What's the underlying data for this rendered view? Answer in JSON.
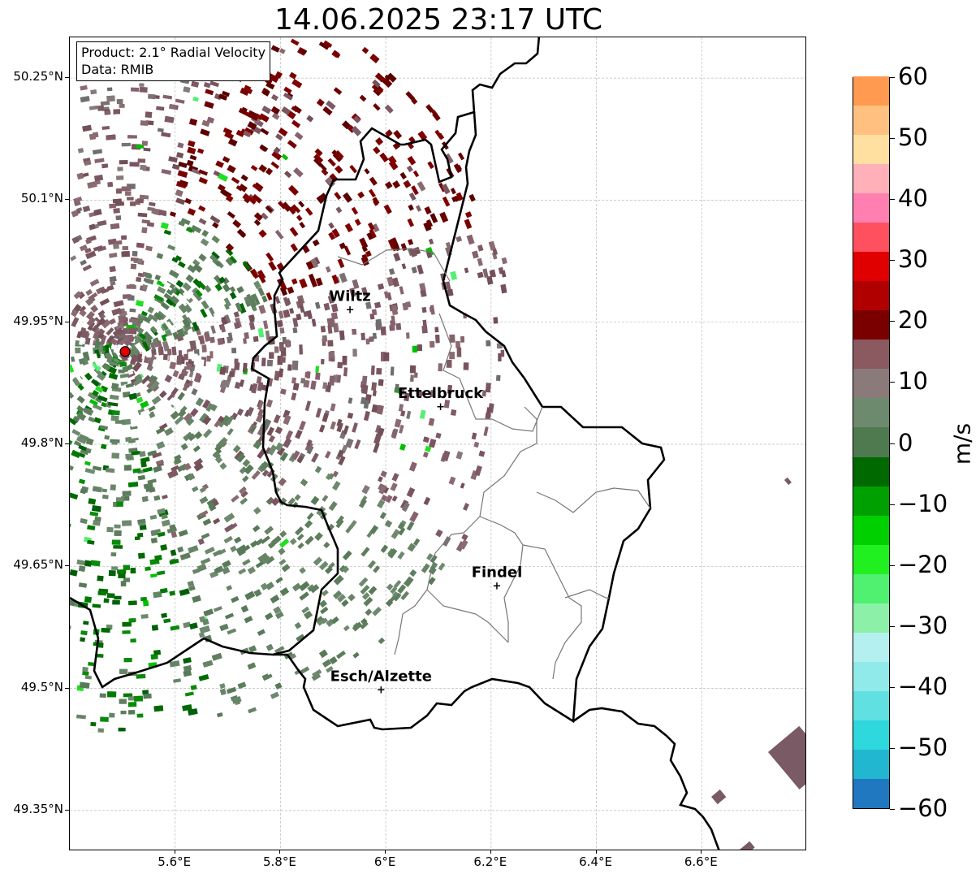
{
  "title": "14.06.2025 23:17 UTC",
  "info": {
    "product": "Product: 2.1° Radial Velocity",
    "data": "Data: RMIB"
  },
  "map": {
    "lon_range": [
      5.4,
      6.8
    ],
    "lat_range": [
      49.3,
      50.3
    ],
    "lat_ticks": [
      "50.25°N",
      "50.1°N",
      "49.95°N",
      "49.8°N",
      "49.65°N",
      "49.5°N",
      "49.35°N"
    ],
    "lon_ticks": [
      "5.6°E",
      "5.8°E",
      "6°E",
      "6.2°E",
      "6.4°E",
      "6.6°E"
    ],
    "grid": true,
    "radar_site": {
      "lon": 5.505,
      "lat": 49.914
    },
    "cities": [
      {
        "name": "Wiltz",
        "lon": 5.932,
        "lat": 49.966
      },
      {
        "name": "Ettelbruck",
        "lon": 6.104,
        "lat": 49.847
      },
      {
        "name": "Findel",
        "lon": 6.211,
        "lat": 49.627
      },
      {
        "name": "Esch/Alzette",
        "lon": 5.991,
        "lat": 49.499
      }
    ]
  },
  "colorbar": {
    "label": "m/s",
    "ticks": [
      "60",
      "50",
      "40",
      "30",
      "20",
      "10",
      "0",
      "−10",
      "−20",
      "−30",
      "−40",
      "−50",
      "−60"
    ],
    "min": -60,
    "max": 60,
    "colors": [
      "#1f78c0",
      "#22b7d0",
      "#2fd8dc",
      "#60e0e0",
      "#90eaea",
      "#b4f0f0",
      "#8cf0a8",
      "#50f070",
      "#20f020",
      "#00d000",
      "#00a000",
      "#006a00",
      "#4f7a4f",
      "#6e8a6e",
      "#8a7a7a",
      "#8a5a60",
      "#7a0000",
      "#b00000",
      "#e00000",
      "#ff5060",
      "#ff80b0",
      "#ffb0b8",
      "#ffe0a0",
      "#ffc080",
      "#ff9a50"
    ]
  }
}
